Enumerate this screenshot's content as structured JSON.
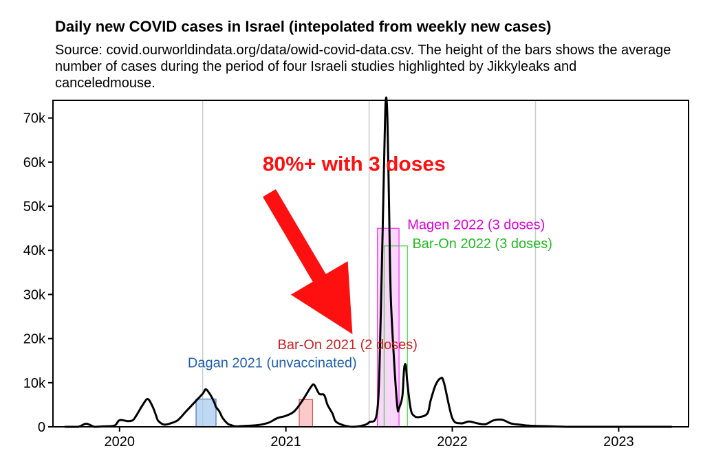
{
  "chart_data": {
    "type": "line",
    "title": "Daily new COVID cases in Israel (intepolated from weekly new cases)",
    "subtitle": "Source: covid.ourworldindata.org/data/owid-covid-data.csv. The height of the bars shows the average number of cases during the period of four Israeli studies highlighted by Jikkyleaks and canceledmouse.",
    "xlabel": "",
    "ylabel": "",
    "xlim": [
      2019.6,
      2023.42
    ],
    "ylim": [
      0,
      74000
    ],
    "x_ticks": [
      2020,
      2021,
      2022,
      2023
    ],
    "x_tick_labels": [
      "2020",
      "2021",
      "2022",
      "2023"
    ],
    "y_ticks": [
      0,
      10000,
      20000,
      30000,
      40000,
      50000,
      60000,
      70000
    ],
    "y_tick_labels": [
      "0",
      "10k",
      "20k",
      "30k",
      "40k",
      "50k",
      "60k",
      "70k"
    ],
    "vertical_gridlines": [
      2020.5,
      2021.5,
      2022.5
    ],
    "line_color": "#000000",
    "gridline_color": "#cccccc",
    "series": [
      {
        "name": "Daily new cases",
        "x": [
          2019.67,
          2019.75,
          2019.8,
          2019.85,
          2019.9,
          2019.97,
          2020.0,
          2020.05,
          2020.08,
          2020.1,
          2020.14,
          2020.17,
          2020.2,
          2020.22,
          2020.23,
          2020.25,
          2020.27,
          2020.3,
          2020.35,
          2020.4,
          2020.45,
          2020.5,
          2020.52,
          2020.55,
          2020.57,
          2020.58,
          2020.6,
          2020.62,
          2020.65,
          2020.67,
          2020.7,
          2020.75,
          2020.8,
          2020.85,
          2020.9,
          2020.95,
          2021.0,
          2021.05,
          2021.1,
          2021.15,
          2021.17,
          2021.2,
          2021.23,
          2021.25,
          2021.28,
          2021.3,
          2021.35,
          2021.4,
          2021.45,
          2021.5,
          2021.55,
          2021.57,
          2021.59,
          2021.6,
          2021.61,
          2021.62,
          2021.63,
          2021.65,
          2021.67,
          2021.68,
          2021.7,
          2021.71,
          2021.72,
          2021.73,
          2021.75,
          2021.77,
          2021.8,
          2021.85,
          2021.87,
          2021.9,
          2021.93,
          2021.95,
          2022.0,
          2022.05,
          2022.1,
          2022.15,
          2022.2,
          2022.25,
          2022.3,
          2022.35,
          2022.4,
          2022.45,
          2022.5,
          2022.6,
          2022.7,
          2022.8,
          2022.9,
          2023.0,
          2023.1,
          2023.2,
          2023.32
        ],
        "values": [
          0,
          0,
          700,
          0,
          100,
          300,
          1500,
          1300,
          1500,
          2500,
          5000,
          6300,
          4500,
          2500,
          1500,
          800,
          500,
          700,
          1500,
          3500,
          5500,
          7500,
          8500,
          7000,
          5500,
          4500,
          3500,
          2000,
          700,
          400,
          100,
          200,
          300,
          500,
          1000,
          2000,
          2500,
          3500,
          6000,
          9000,
          9500,
          7500,
          7200,
          5000,
          3000,
          1200,
          300,
          0,
          200,
          1000,
          4000,
          25000,
          60000,
          74000,
          70000,
          50000,
          30000,
          15000,
          4500,
          4200,
          7000,
          13000,
          14000,
          10000,
          4000,
          2500,
          2200,
          3000,
          6000,
          9500,
          11000,
          10000,
          2000,
          800,
          1200,
          800,
          600,
          1500,
          1600,
          800,
          500,
          300,
          200,
          100,
          0,
          0,
          0,
          0,
          0,
          0,
          0
        ]
      }
    ],
    "bars": [
      {
        "name": "Dagan 2021 (unvaccinated)",
        "x_start": 2020.46,
        "x_end": 2020.58,
        "value": 6300,
        "fill": "#aaccf0",
        "stroke": "#2060b0"
      },
      {
        "name": "Bar-On 2021 (2 doses)",
        "x_start": 2021.08,
        "x_end": 2021.16,
        "value": 6200,
        "fill": "#f8b8b8",
        "stroke": "#d03030"
      },
      {
        "name": "Magen 2022 (3 doses)",
        "x_start": 2021.55,
        "x_end": 2021.68,
        "value": 45000,
        "fill": "#f8c8f8",
        "stroke": "#ff00ff"
      },
      {
        "name": "Bar-On 2022 (3 doses)",
        "x_start": 2021.59,
        "x_end": 2021.73,
        "value": 41000,
        "fill": "none",
        "stroke": "#22cc22"
      }
    ],
    "annotations": [
      {
        "text": "Magen 2022 (3 doses)",
        "x": 2021.73,
        "y": 44800,
        "color": "#dd00dd"
      },
      {
        "text": "Bar-On 2022 (3 doses)",
        "x": 2021.76,
        "y": 40500,
        "color": "#22bb22"
      },
      {
        "text": "Bar-On 2021 (2 doses)",
        "x": 2020.95,
        "y": 17600,
        "color": "#cc2222"
      },
      {
        "text": "Dagan 2021 (unvaccinated)",
        "x": 2020.41,
        "y": 13500,
        "color": "#2060b0"
      }
    ],
    "arrow": {
      "text": "80%+ with 3 doses",
      "color": "#ff1010",
      "text_x": 2021.41,
      "text_y": 58000,
      "from_x": 2020.9,
      "from_y": 53000,
      "to_x": 2021.4,
      "to_y": 21000
    }
  }
}
